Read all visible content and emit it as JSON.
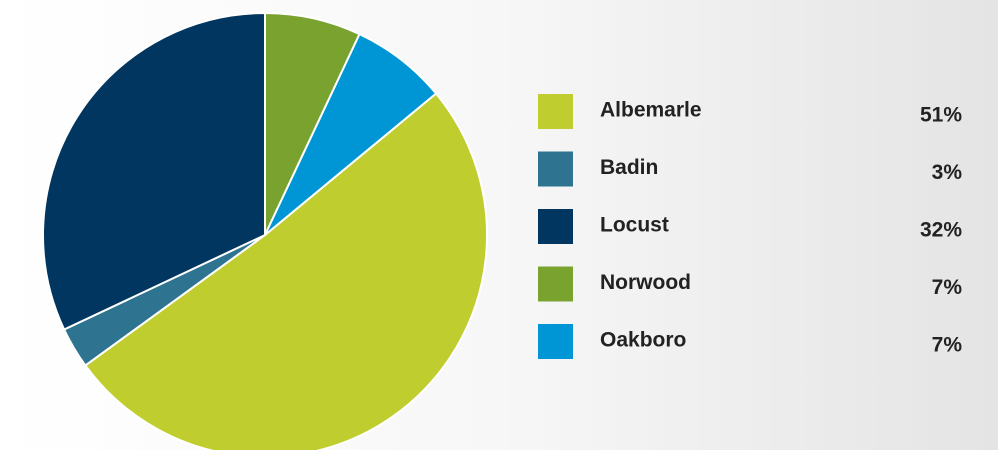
{
  "chart_data": {
    "type": "pie",
    "categories": [
      "Albemarle",
      "Badin",
      "Locust",
      "Norwood",
      "Oakboro"
    ],
    "values": [
      51,
      3,
      32,
      7,
      7
    ],
    "value_labels": [
      "51%",
      "3%",
      "32%",
      "7%",
      "7%"
    ],
    "colors": [
      "#bfcd2e",
      "#2e7491",
      "#003660",
      "#7aa22f",
      "#0096d6"
    ],
    "legend": "right"
  }
}
